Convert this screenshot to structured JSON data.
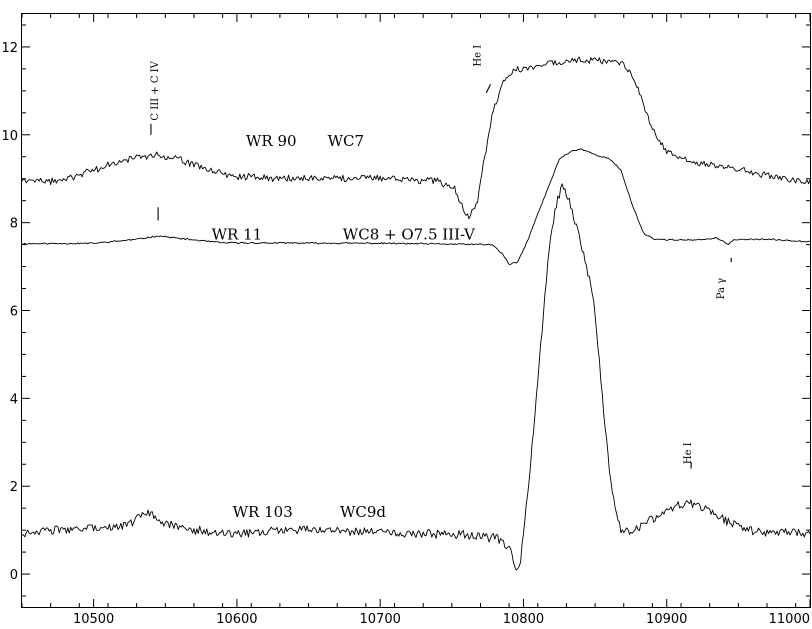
{
  "chart_data": {
    "type": "line",
    "title": "",
    "xlabel": "",
    "ylabel": "",
    "xlim": [
      10450,
      11000
    ],
    "ylim": [
      -0.75,
      12.75
    ],
    "x_ticks": [
      10500,
      10600,
      10700,
      10800,
      10900,
      11000
    ],
    "y_ticks": [
      0,
      2,
      4,
      6,
      8,
      10,
      12
    ],
    "grid": false,
    "series": [
      {
        "label": "WR 90    WC7",
        "noise": 0.07,
        "seed": 90,
        "points": [
          [
            10450,
            8.98
          ],
          [
            10470,
            8.93
          ],
          [
            10490,
            9.08
          ],
          [
            10510,
            9.32
          ],
          [
            10530,
            9.5
          ],
          [
            10545,
            9.55
          ],
          [
            10560,
            9.44
          ],
          [
            10580,
            9.2
          ],
          [
            10600,
            9.05
          ],
          [
            10640,
            9.0
          ],
          [
            10700,
            9.03
          ],
          [
            10740,
            8.95
          ],
          [
            10752,
            8.75
          ],
          [
            10758,
            8.3
          ],
          [
            10762,
            8.1
          ],
          [
            10768,
            8.5
          ],
          [
            10772,
            9.3
          ],
          [
            10778,
            10.4
          ],
          [
            10785,
            11.2
          ],
          [
            10795,
            11.5
          ],
          [
            10820,
            11.62
          ],
          [
            10840,
            11.72
          ],
          [
            10860,
            11.66
          ],
          [
            10872,
            11.55
          ],
          [
            10882,
            10.9
          ],
          [
            10890,
            10.1
          ],
          [
            10900,
            9.62
          ],
          [
            10920,
            9.35
          ],
          [
            10950,
            9.22
          ],
          [
            10975,
            9.05
          ],
          [
            11000,
            8.92
          ]
        ]
      },
      {
        "label": "WR 11    WC8 + O7.5 III-V",
        "noise": 0.015,
        "seed": 11,
        "points": [
          [
            10450,
            7.52
          ],
          [
            10500,
            7.53
          ],
          [
            10530,
            7.62
          ],
          [
            10545,
            7.7
          ],
          [
            10560,
            7.64
          ],
          [
            10590,
            7.54
          ],
          [
            10700,
            7.53
          ],
          [
            10778,
            7.5
          ],
          [
            10785,
            7.3
          ],
          [
            10790,
            7.05
          ],
          [
            10796,
            7.1
          ],
          [
            10803,
            7.6
          ],
          [
            10810,
            8.2
          ],
          [
            10818,
            8.85
          ],
          [
            10825,
            9.45
          ],
          [
            10833,
            9.62
          ],
          [
            10840,
            9.68
          ],
          [
            10850,
            9.55
          ],
          [
            10860,
            9.45
          ],
          [
            10868,
            9.2
          ],
          [
            10876,
            8.4
          ],
          [
            10884,
            7.75
          ],
          [
            10892,
            7.62
          ],
          [
            10920,
            7.6
          ],
          [
            10935,
            7.65
          ],
          [
            10943,
            7.5
          ],
          [
            10947,
            7.62
          ],
          [
            10970,
            7.62
          ],
          [
            11000,
            7.57
          ]
        ]
      },
      {
        "label": "WR 103    WC9d",
        "noise": 0.09,
        "seed": 103,
        "points": [
          [
            10450,
            0.92
          ],
          [
            10500,
            1.05
          ],
          [
            10525,
            1.12
          ],
          [
            10537,
            1.42
          ],
          [
            10548,
            1.2
          ],
          [
            10565,
            1.0
          ],
          [
            10600,
            0.92
          ],
          [
            10650,
            1.02
          ],
          [
            10700,
            0.95
          ],
          [
            10760,
            0.88
          ],
          [
            10782,
            0.82
          ],
          [
            10790,
            0.6
          ],
          [
            10795,
            0.15
          ],
          [
            10798,
            0.3
          ],
          [
            10802,
            1.5
          ],
          [
            10808,
            3.6
          ],
          [
            10813,
            5.6
          ],
          [
            10818,
            7.4
          ],
          [
            10823,
            8.45
          ],
          [
            10827,
            8.85
          ],
          [
            10832,
            8.5
          ],
          [
            10838,
            7.8
          ],
          [
            10843,
            7.1
          ],
          [
            10848,
            6.45
          ],
          [
            10852,
            5.2
          ],
          [
            10856,
            3.7
          ],
          [
            10860,
            2.4
          ],
          [
            10864,
            1.45
          ],
          [
            10868,
            0.98
          ],
          [
            10878,
            1.02
          ],
          [
            10893,
            1.3
          ],
          [
            10908,
            1.58
          ],
          [
            10918,
            1.62
          ],
          [
            10930,
            1.42
          ],
          [
            10945,
            1.12
          ],
          [
            10965,
            0.95
          ],
          [
            10985,
            0.96
          ],
          [
            11000,
            0.94
          ]
        ]
      }
    ],
    "labels": [
      {
        "text": "WR 90",
        "x": 10624,
        "y": 9.75
      },
      {
        "text": "WC7",
        "x": 10676,
        "y": 9.75
      },
      {
        "text": "WR 11",
        "x": 10600,
        "y": 7.62
      },
      {
        "text": "WC8 + O7.5 III-V",
        "x": 10720,
        "y": 7.62
      },
      {
        "text": "WR 103",
        "x": 10618,
        "y": 1.3
      },
      {
        "text": "WC9d",
        "x": 10688,
        "y": 1.3
      }
    ],
    "annotations": [
      {
        "text": "C III + C IV",
        "x": 10545,
        "rotated": true,
        "y_text": 11.0,
        "mark": [
          10540,
          10.0,
          10540,
          10.25
        ]
      },
      {
        "text": "He I",
        "x": 10770,
        "rotated": true,
        "y_text": 11.8,
        "mark": [
          10774,
          10.95,
          10777,
          11.15
        ]
      },
      {
        "text": "",
        "x": 10545,
        "rotated": false,
        "mark": [
          10545,
          8.05,
          10545,
          8.35
        ]
      },
      {
        "text": "Pa γ",
        "x": 10940,
        "rotated": true,
        "y_text": 6.5,
        "mark": [
          10945,
          7.1,
          10945,
          7.2
        ]
      },
      {
        "text": "He I",
        "x": 10917,
        "rotated": true,
        "y_text": 2.75,
        "mark": [
          10917,
          2.4,
          10917,
          2.55
        ]
      }
    ]
  }
}
